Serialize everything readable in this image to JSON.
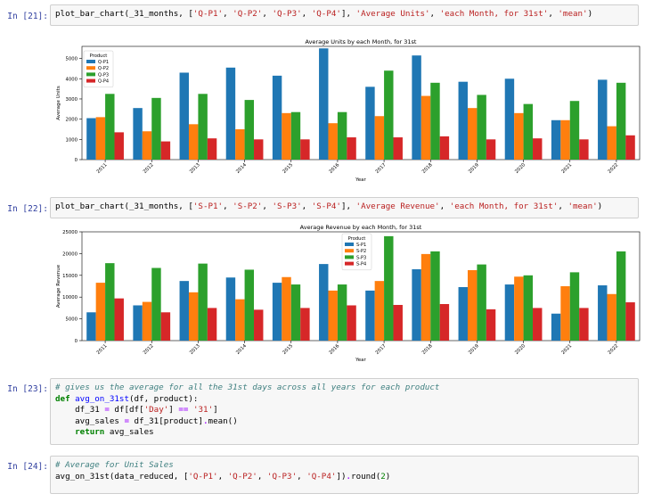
{
  "cells": [
    {
      "prompt": "In [21]:",
      "code_parts": [
        {
          "t": "plot_bar_chart(_31_months, [",
          "k": ""
        },
        {
          "t": "'Q-P1'",
          "k": "s"
        },
        {
          "t": ", ",
          "k": ""
        },
        {
          "t": "'Q-P2'",
          "k": "s"
        },
        {
          "t": ", ",
          "k": ""
        },
        {
          "t": "'Q-P3'",
          "k": "s"
        },
        {
          "t": ", ",
          "k": ""
        },
        {
          "t": "'Q-P4'",
          "k": "s"
        },
        {
          "t": "], ",
          "k": ""
        },
        {
          "t": "'Average Units'",
          "k": "s"
        },
        {
          "t": ", ",
          "k": ""
        },
        {
          "t": "'each Month, for 31st'",
          "k": "s"
        },
        {
          "t": ", ",
          "k": ""
        },
        {
          "t": "'mean'",
          "k": "s"
        },
        {
          "t": ")",
          "k": ""
        }
      ]
    },
    {
      "prompt": "In [22]:",
      "code_parts": [
        {
          "t": "plot_bar_chart(_31_months, [",
          "k": ""
        },
        {
          "t": "'S-P1'",
          "k": "s"
        },
        {
          "t": ", ",
          "k": ""
        },
        {
          "t": "'S-P2'",
          "k": "s"
        },
        {
          "t": ", ",
          "k": ""
        },
        {
          "t": "'S-P3'",
          "k": "s"
        },
        {
          "t": ", ",
          "k": ""
        },
        {
          "t": "'S-P4'",
          "k": "s"
        },
        {
          "t": "], ",
          "k": ""
        },
        {
          "t": "'Average Revenue'",
          "k": "s"
        },
        {
          "t": ", ",
          "k": ""
        },
        {
          "t": "'each Month, for 31st'",
          "k": "s"
        },
        {
          "t": ", ",
          "k": ""
        },
        {
          "t": "'mean'",
          "k": "s"
        },
        {
          "t": ")",
          "k": ""
        }
      ]
    },
    {
      "prompt": "In [23]:",
      "lines": [
        [
          {
            "t": "# gives us the average for all the 31st days across all years for each product",
            "k": "c"
          }
        ],
        [
          {
            "t": "def ",
            "k": "k"
          },
          {
            "t": "avg_on_31st",
            "k": "f"
          },
          {
            "t": "(df, product):",
            "k": ""
          }
        ],
        [
          {
            "t": "    df_31 ",
            "k": ""
          },
          {
            "t": "=",
            "k": "o"
          },
          {
            "t": " df[df[",
            "k": ""
          },
          {
            "t": "'Day'",
            "k": "s"
          },
          {
            "t": "] ",
            "k": ""
          },
          {
            "t": "==",
            "k": "o"
          },
          {
            "t": " ",
            "k": ""
          },
          {
            "t": "'31'",
            "k": "s"
          },
          {
            "t": "]",
            "k": ""
          }
        ],
        [
          {
            "t": "    avg_sales ",
            "k": ""
          },
          {
            "t": "=",
            "k": "o"
          },
          {
            "t": " df_31[product]",
            "k": ""
          },
          {
            "t": ".",
            "k": "o"
          },
          {
            "t": "mean()",
            "k": ""
          }
        ],
        [
          {
            "t": "    return",
            "k": "k"
          },
          {
            "t": " avg_sales",
            "k": ""
          }
        ]
      ]
    },
    {
      "prompt": "In [24]:",
      "lines": [
        [
          {
            "t": "# Average for Unit Sales",
            "k": "c"
          }
        ],
        [
          {
            "t": "avg_on_31st(data_reduced, [",
            "k": ""
          },
          {
            "t": "'Q-P1'",
            "k": "s"
          },
          {
            "t": ", ",
            "k": ""
          },
          {
            "t": "'Q-P2'",
            "k": "s"
          },
          {
            "t": ", ",
            "k": ""
          },
          {
            "t": "'Q-P3'",
            "k": "s"
          },
          {
            "t": ", ",
            "k": ""
          },
          {
            "t": "'Q-P4'",
            "k": "s"
          },
          {
            "t": "])",
            "k": ""
          },
          {
            "t": ".",
            "k": "o"
          },
          {
            "t": "round(",
            "k": ""
          },
          {
            "t": "2",
            "k": "n"
          },
          {
            "t": ")",
            "k": ""
          }
        ]
      ]
    }
  ],
  "colors": [
    "#1f77b4",
    "#ff7f0e",
    "#2ca02c",
    "#d62728"
  ],
  "chart_data": [
    {
      "type": "bar",
      "title": "Average Units by each Month, for 31st",
      "xlabel": "Year",
      "ylabel": "Average Units",
      "ylim": [
        0,
        5600
      ],
      "yticks": [
        0,
        1000,
        2000,
        3000,
        4000,
        5000
      ],
      "legend_title": "Product",
      "legend_position": "top-left",
      "categories": [
        "2011",
        "2012",
        "2013",
        "2014",
        "2015",
        "2016",
        "2017",
        "2018",
        "2019",
        "2020",
        "2021",
        "2022"
      ],
      "series": [
        {
          "name": "Q-P1",
          "values": [
            2050,
            2550,
            4300,
            4550,
            4150,
            5500,
            3600,
            5150,
            3850,
            4000,
            1950,
            3950
          ]
        },
        {
          "name": "Q-P2",
          "values": [
            2100,
            1400,
            1750,
            1500,
            2300,
            1800,
            2150,
            3150,
            2550,
            2300,
            1950,
            1650
          ]
        },
        {
          "name": "Q-P3",
          "values": [
            3250,
            3050,
            3250,
            2950,
            2350,
            2350,
            4400,
            3800,
            3200,
            2750,
            2900,
            3800
          ]
        },
        {
          "name": "Q-P4",
          "values": [
            1350,
            900,
            1050,
            1000,
            1000,
            1100,
            1100,
            1150,
            1000,
            1050,
            1000,
            1200
          ]
        }
      ]
    },
    {
      "type": "bar",
      "title": "Average Revenue by each Month, for 31st",
      "xlabel": "Year",
      "ylabel": "Average Revenue",
      "ylim": [
        0,
        25000
      ],
      "yticks": [
        0,
        5000,
        10000,
        15000,
        20000,
        25000
      ],
      "legend_title": "Product",
      "legend_position": "top-center",
      "categories": [
        "2011",
        "2012",
        "2013",
        "2014",
        "2015",
        "2016",
        "2017",
        "2018",
        "2019",
        "2020",
        "2021",
        "2022"
      ],
      "series": [
        {
          "name": "S-P1",
          "values": [
            6500,
            8100,
            13700,
            14500,
            13300,
            17600,
            11500,
            16400,
            12300,
            12900,
            6200,
            12700
          ]
        },
        {
          "name": "S-P2",
          "values": [
            13300,
            8900,
            11100,
            9500,
            14600,
            11500,
            13700,
            19900,
            16200,
            14700,
            12500,
            10700
          ]
        },
        {
          "name": "S-P3",
          "values": [
            17800,
            16700,
            17700,
            16300,
            12900,
            12900,
            24000,
            20500,
            17500,
            15000,
            15700,
            20500
          ]
        },
        {
          "name": "S-P4",
          "values": [
            9700,
            6500,
            7500,
            7100,
            7500,
            8100,
            8200,
            8400,
            7200,
            7500,
            7500,
            8800
          ]
        }
      ]
    }
  ]
}
